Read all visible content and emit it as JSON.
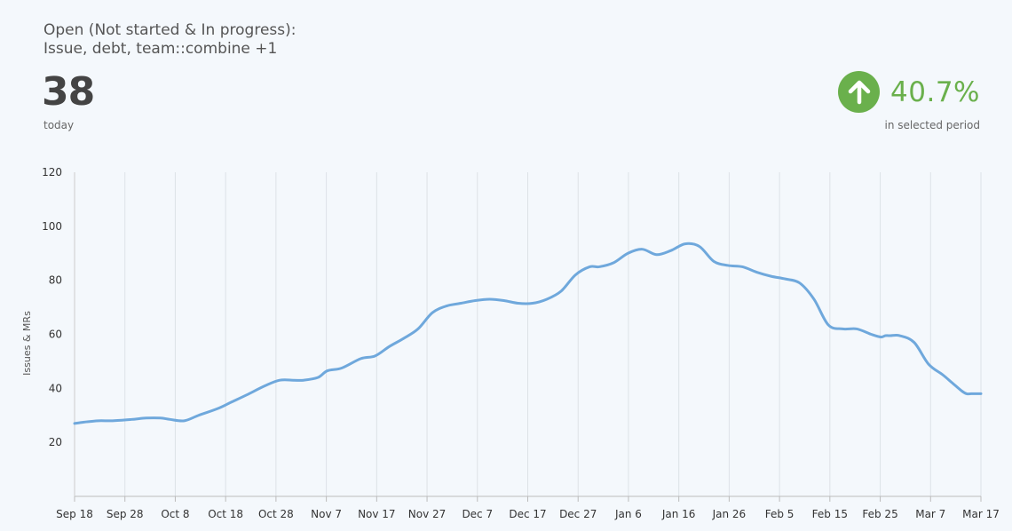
{
  "header": {
    "title": "Open (Not started & In progress):\nIssue, debt, team::combine +1",
    "value": "38",
    "value_caption": "today",
    "change_value": "40.7%",
    "change_caption": "in selected period",
    "change_icon": "arrow-up-icon",
    "accent_color": "#6ab04c"
  },
  "chart_data": {
    "type": "line",
    "ylabel": "Issues & MRs",
    "xlabel": "",
    "ylim": [
      0,
      120
    ],
    "yticks": [
      20,
      40,
      60,
      80,
      100,
      120
    ],
    "xticks": [
      "Sep 18",
      "Sep 28",
      "Oct 8",
      "Oct 18",
      "Oct 28",
      "Nov 7",
      "Nov 17",
      "Nov 27",
      "Dec 7",
      "Dec 17",
      "Dec 27",
      "Jan 6",
      "Jan 16",
      "Jan 26",
      "Feb 5",
      "Feb 15",
      "Feb 25",
      "Mar 7",
      "Mar 17"
    ],
    "grid": "vertical",
    "line_color": "#6fa8dc",
    "series": [
      {
        "x": [
          0,
          2,
          5,
          8,
          12,
          15,
          18,
          20,
          23,
          26,
          30,
          33,
          36,
          40,
          43,
          46,
          48,
          51,
          53,
          56,
          60,
          63,
          66,
          69,
          72,
          75,
          78,
          81,
          84,
          87,
          90,
          93,
          96,
          99,
          102,
          105,
          108,
          110,
          113,
          116,
          119,
          122,
          125,
          128,
          131,
          134,
          137,
          140,
          143,
          146,
          149,
          152,
          155,
          158,
          161,
          164,
          167,
          169,
          170,
          171,
          173,
          176,
          179,
          182,
          184,
          186,
          187,
          188,
          189,
          190
        ],
        "values": [
          27,
          27.5,
          28,
          28,
          28.5,
          29,
          29,
          28.5,
          28,
          30,
          32.5,
          35,
          37.5,
          41,
          43,
          43,
          43,
          44,
          46.5,
          47.5,
          51,
          52,
          55.5,
          58.5,
          62,
          68,
          70.5,
          71.5,
          72.5,
          73,
          72.5,
          71.5,
          71.5,
          73,
          76,
          82,
          85,
          85,
          86.5,
          90,
          91.5,
          89.5,
          91,
          93.5,
          92.5,
          87,
          85.5,
          85,
          83,
          81.5,
          80.5,
          79,
          73,
          63.5,
          62,
          62,
          60,
          59,
          59.5,
          59.5,
          59.5,
          57,
          49,
          45,
          42,
          39,
          38,
          38,
          38,
          38
        ]
      }
    ]
  }
}
